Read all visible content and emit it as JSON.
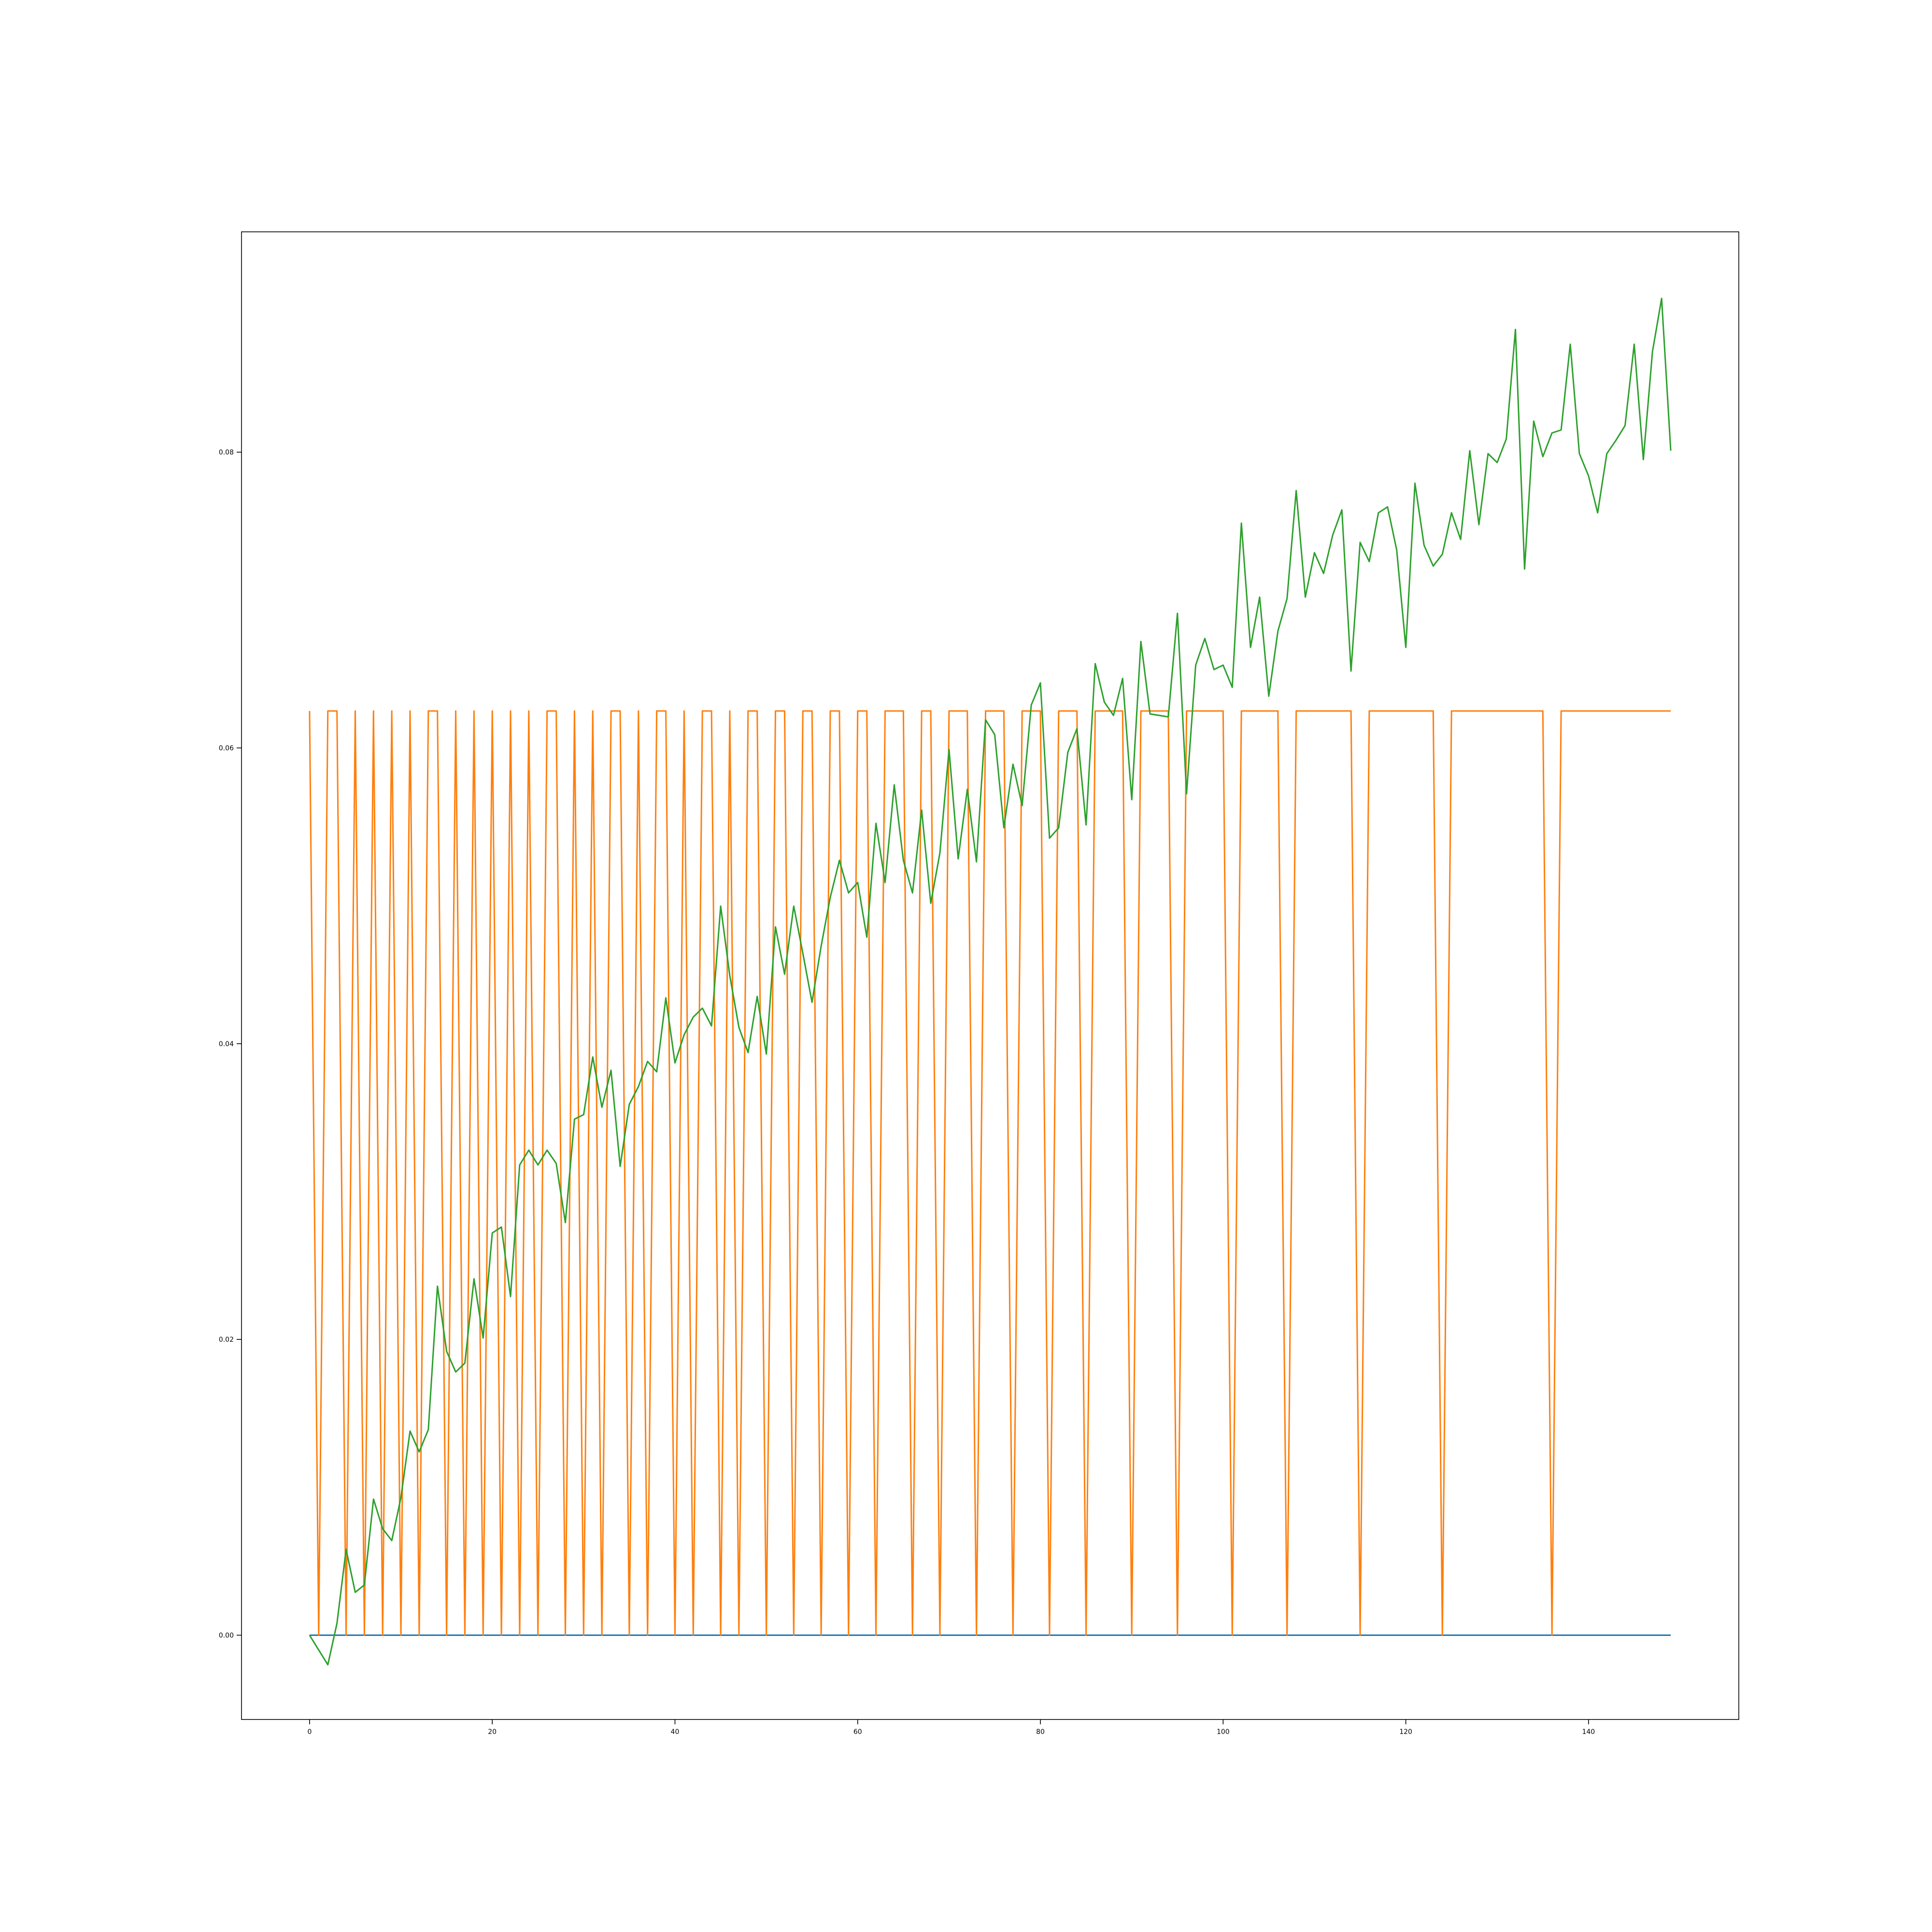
{
  "chart_data": {
    "type": "line",
    "title": "",
    "xlabel": "",
    "ylabel": "",
    "xlim": [
      -7.45,
      156.45
    ],
    "ylim": [
      -0.0057,
      0.0949
    ],
    "x_ticks": [
      0,
      20,
      40,
      60,
      80,
      100,
      120,
      140
    ],
    "x_tick_labels": [
      "0",
      "20",
      "40",
      "60",
      "80",
      "100",
      "120",
      "140"
    ],
    "y_ticks": [
      0.0,
      0.02,
      0.04,
      0.06,
      0.08
    ],
    "y_tick_labels": [
      "0.00",
      "0.02",
      "0.04",
      "0.06",
      "0.08"
    ],
    "grid": false,
    "legend": "none",
    "series": [
      {
        "color": "#1f77b4",
        "x_start": 0,
        "values": [
          0,
          0,
          0,
          0,
          0,
          0,
          0,
          0,
          0,
          0,
          0,
          0,
          0,
          0,
          0,
          0,
          0,
          0,
          0,
          0,
          0,
          0,
          0,
          0,
          0,
          0,
          0,
          0,
          0,
          0,
          0,
          0,
          0,
          0,
          0,
          0,
          0,
          0,
          0,
          0,
          0,
          0,
          0,
          0,
          0,
          0,
          0,
          0,
          0,
          0,
          0,
          0,
          0,
          0,
          0,
          0,
          0,
          0,
          0,
          0,
          0,
          0,
          0,
          0,
          0,
          0,
          0,
          0,
          0,
          0,
          0,
          0,
          0,
          0,
          0,
          0,
          0,
          0,
          0,
          0,
          0,
          0,
          0,
          0,
          0,
          0,
          0,
          0,
          0,
          0,
          0,
          0,
          0,
          0,
          0,
          0,
          0,
          0,
          0,
          0,
          0,
          0,
          0,
          0,
          0,
          0,
          0,
          0,
          0,
          0,
          0,
          0,
          0,
          0,
          0,
          0,
          0,
          0,
          0,
          0,
          0,
          0,
          0,
          0,
          0,
          0,
          0,
          0,
          0,
          0,
          0,
          0,
          0,
          0,
          0,
          0,
          0,
          0,
          0,
          0,
          0,
          0,
          0,
          0,
          0,
          0,
          0,
          0,
          0,
          0
        ]
      },
      {
        "color": "#ff7f0e",
        "x_start": 0,
        "values": [
          0.0625,
          0,
          0.0625,
          0.0625,
          0,
          0.0625,
          0,
          0.0625,
          0,
          0.0625,
          0,
          0.0625,
          0,
          0.0625,
          0.0625,
          0,
          0.0625,
          0,
          0.0625,
          0,
          0.0625,
          0,
          0.0625,
          0,
          0.0625,
          0,
          0.0625,
          0.0625,
          0,
          0.0625,
          0,
          0.0625,
          0,
          0.0625,
          0.0625,
          0,
          0.0625,
          0,
          0.0625,
          0.0625,
          0,
          0.0625,
          0,
          0.0625,
          0.0625,
          0,
          0.0625,
          0,
          0.0625,
          0.0625,
          0,
          0.0625,
          0.0625,
          0,
          0.0625,
          0.0625,
          0,
          0.0625,
          0.0625,
          0,
          0.0625,
          0.0625,
          0,
          0.0625,
          0.0625,
          0.0625,
          0,
          0.0625,
          0.0625,
          0,
          0.0625,
          0.0625,
          0.0625,
          0,
          0.0625,
          0.0625,
          0.0625,
          0,
          0.0625,
          0.0625,
          0.0625,
          0,
          0.0625,
          0.0625,
          0.0625,
          0,
          0.0625,
          0.0625,
          0.0625,
          0.0625,
          0,
          0.0625,
          0.0625,
          0.0625,
          0.0625,
          0,
          0.0625,
          0.0625,
          0.0625,
          0.0625,
          0.0625,
          0,
          0.0625,
          0.0625,
          0.0625,
          0.0625,
          0.0625,
          0,
          0.0625,
          0.0625,
          0.0625,
          0.0625,
          0.0625,
          0.0625,
          0.0625,
          0,
          0.0625,
          0.0625,
          0.0625,
          0.0625,
          0.0625,
          0.0625,
          0.0625,
          0.0625,
          0,
          0.0625,
          0.0625,
          0.0625,
          0.0625,
          0.0625,
          0.0625,
          0.0625,
          0.0625,
          0.0625,
          0.0625,
          0.0625,
          0,
          0.0625,
          0.0625,
          0.0625,
          0.0625,
          0.0625,
          0.0625,
          0.0625,
          0.0625,
          0.0625,
          0.0625,
          0.0625,
          0.0625,
          0.0625
        ]
      },
      {
        "color": "#2ca02c",
        "x_start": 0,
        "values": [
          0,
          -0.001,
          -0.002,
          0.0008,
          0.0058,
          0.0029,
          0.0034,
          0.0092,
          0.0072,
          0.0064,
          0.0093,
          0.0138,
          0.0124,
          0.0139,
          0.0236,
          0.0192,
          0.0178,
          0.0184,
          0.0241,
          0.0201,
          0.0272,
          0.0276,
          0.0229,
          0.0318,
          0.0328,
          0.0318,
          0.0328,
          0.0319,
          0.0279,
          0.0349,
          0.0352,
          0.0391,
          0.0357,
          0.0382,
          0.0317,
          0.0359,
          0.0371,
          0.0388,
          0.0381,
          0.0431,
          0.0387,
          0.0406,
          0.0418,
          0.0424,
          0.0412,
          0.0493,
          0.0446,
          0.0411,
          0.0394,
          0.0432,
          0.0393,
          0.0479,
          0.0447,
          0.0493,
          0.0461,
          0.0428,
          0.0466,
          0.0499,
          0.0524,
          0.0502,
          0.0509,
          0.0472,
          0.0549,
          0.0509,
          0.0575,
          0.0524,
          0.0502,
          0.0558,
          0.0495,
          0.0529,
          0.0599,
          0.0525,
          0.0572,
          0.0523,
          0.0619,
          0.0609,
          0.0546,
          0.0589,
          0.0561,
          0.0629,
          0.0644,
          0.0539,
          0.0546,
          0.0597,
          0.0613,
          0.0548,
          0.0657,
          0.0631,
          0.0622,
          0.0647,
          0.0565,
          0.0672,
          0.0623,
          0.0622,
          0.0621,
          0.0691,
          0.0569,
          0.0656,
          0.0674,
          0.0653,
          0.0656,
          0.0641,
          0.0752,
          0.0668,
          0.0702,
          0.0635,
          0.0679,
          0.0701,
          0.0774,
          0.0702,
          0.0732,
          0.0718,
          0.0744,
          0.0761,
          0.0652,
          0.0739,
          0.0726,
          0.0759,
          0.0763,
          0.0734,
          0.0668,
          0.0779,
          0.0737,
          0.0723,
          0.0731,
          0.0759,
          0.0741,
          0.0801,
          0.0751,
          0.0799,
          0.0793,
          0.0809,
          0.0883,
          0.0721,
          0.0821,
          0.0797,
          0.0813,
          0.0815,
          0.0873,
          0.0799,
          0.0784,
          0.0759,
          0.0799,
          0.0808,
          0.0818,
          0.0873,
          0.0795,
          0.0868,
          0.0904,
          0.0801
        ]
      }
    ]
  }
}
